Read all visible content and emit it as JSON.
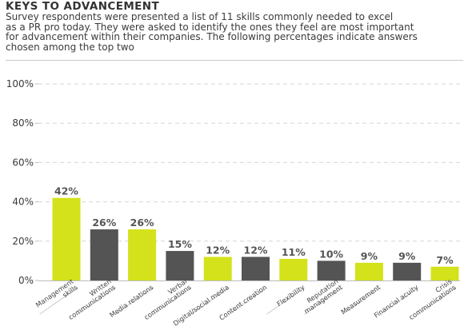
{
  "chart_data": {
    "type": "bar",
    "title": "KEYS TO ADVANCEMENT",
    "subtitle_lines": [
      "Survey respondents were presented a list of 11 skills commonly needed to excel",
      "as a PR pro today. They were asked to identify the ones they feel are most important",
      "for advancement within their companies. The following percentages indicate answers",
      "chosen among the top two"
    ],
    "categories": [
      [
        "Management",
        "skills"
      ],
      [
        "Written",
        "communications"
      ],
      [
        "Media relations"
      ],
      [
        "Verbal",
        "communications"
      ],
      [
        "Digital/social media"
      ],
      [
        "Content creation"
      ],
      [
        "Flexibility"
      ],
      [
        "Reputation",
        "management"
      ],
      [
        "Measurement"
      ],
      [
        "Financial acuity"
      ],
      [
        "Crisis",
        "communications"
      ]
    ],
    "values": [
      42,
      26,
      26,
      15,
      12,
      12,
      11,
      10,
      9,
      9,
      7
    ],
    "value_labels": [
      "42%",
      "26%",
      "26%",
      "15%",
      "12%",
      "12%",
      "11%",
      "10%",
      "9%",
      "9%",
      "7%"
    ],
    "ylim": [
      0,
      100
    ],
    "yticks": [
      0,
      20,
      40,
      60,
      80,
      100
    ],
    "ytick_labels": [
      "0%",
      "20%",
      "40%",
      "60%",
      "80%",
      "100%"
    ],
    "grid": true,
    "legend": "none",
    "bar_colors": [
      "#d4e21b",
      "#545454",
      "#d4e21b",
      "#545454",
      "#d4e21b",
      "#545454",
      "#d4e21b",
      "#545454",
      "#d4e21b",
      "#545454",
      "#d4e21b"
    ]
  },
  "colors": {
    "accent": "#d4e21b",
    "dark": "#545454",
    "grid": "#d6d6d6",
    "axis": "#bdbdbd"
  }
}
